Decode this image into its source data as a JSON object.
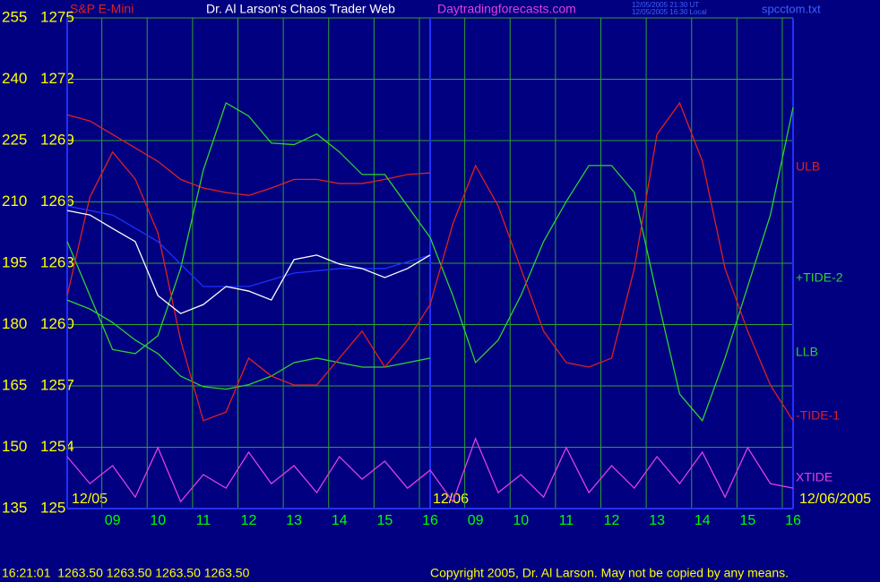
{
  "chart_data": {
    "type": "line",
    "header": {
      "symbol": "S&P E-Mini",
      "title": "Dr. Al Larson's Chaos Trader Web",
      "site": "Daytradingforecasts.com",
      "time_ut": "12/05/2005 21:30 UT",
      "time_local": "12/05/2005 16:30 Local",
      "file": "spcctom.txt"
    },
    "footer": {
      "quote": "16:21:01  1263.50 1263.50 1263.50 1263.50",
      "copyright": "Copyright 2005, Dr. Al Larson. May not be copied by any means."
    },
    "annotations": [
      "12/05",
      "12/06",
      "12/06/2005"
    ],
    "xlim": [
      0,
      16
    ],
    "xticks": [
      {
        "value": 1,
        "label": "09"
      },
      {
        "value": 2,
        "label": "10"
      },
      {
        "value": 3,
        "label": "11"
      },
      {
        "value": 4,
        "label": "12"
      },
      {
        "value": 5,
        "label": "13"
      },
      {
        "value": 6,
        "label": "14"
      },
      {
        "value": 7,
        "label": "15"
      },
      {
        "value": 8,
        "label": "16"
      },
      {
        "value": 9,
        "label": "09"
      },
      {
        "value": 10,
        "label": "10"
      },
      {
        "value": 11,
        "label": "11"
      },
      {
        "value": 12,
        "label": "12"
      },
      {
        "value": 13,
        "label": "13"
      },
      {
        "value": 14,
        "label": "14"
      },
      {
        "value": 15,
        "label": "15"
      },
      {
        "value": 16,
        "label": "16"
      }
    ],
    "ylim": [
      135,
      255
    ],
    "yticks": [
      135,
      150,
      165,
      180,
      195,
      210,
      225,
      240,
      255
    ],
    "y2lim": [
      1251,
      1275
    ],
    "y2ticks": [
      {
        "value": 1251,
        "label": "125"
      },
      1254,
      1257,
      1260,
      1263,
      1266,
      1269,
      1272,
      1275
    ],
    "grid": true,
    "series": [
      {
        "name": "ULB",
        "color": "#e02020",
        "x": [
          0,
          0.5,
          1,
          1.5,
          2,
          2.5,
          3,
          3.5,
          4,
          4.5,
          5,
          5.5,
          6,
          6.5,
          7,
          7.5,
          8
        ],
        "values": [
          231.3,
          229.8,
          226.5,
          223.2,
          219.9,
          215.5,
          213.4,
          212.3,
          211.6,
          213.4,
          215.5,
          215.5,
          214.5,
          214.5,
          215.5,
          216.7,
          217.1
        ]
      },
      {
        "name": "+TIDE-2",
        "color": "#30d030",
        "x": [
          0,
          0.5,
          1,
          1.5,
          2,
          2.5,
          3,
          3.5,
          4,
          4.5,
          5,
          5.5,
          6,
          6.5,
          7,
          7.5,
          8,
          8.5,
          9,
          9.5,
          10,
          10.5,
          11,
          11.5,
          12,
          12.5,
          13,
          13.5,
          14,
          14.5,
          15,
          15.5,
          16
        ],
        "values": [
          200.3,
          187.1,
          173.9,
          172.9,
          177.3,
          193.7,
          217.8,
          234.2,
          231,
          224.4,
          224,
          226.6,
          222.2,
          216.7,
          216.7,
          209,
          201.3,
          187.1,
          170.7,
          176.2,
          187.1,
          200.3,
          210.1,
          218.9,
          218.9,
          212.3,
          187.1,
          163,
          156.5,
          171.8,
          189.3,
          206.8,
          233.1
        ]
      },
      {
        "name": "LLB",
        "color": "#30d030",
        "x": [
          0,
          0.5,
          1,
          1.5,
          2,
          2.5,
          3,
          3.5,
          4,
          4.5,
          5,
          5.5,
          6,
          6.5,
          7,
          7.5,
          8
        ],
        "values": [
          186,
          183.8,
          180.5,
          176.2,
          172.9,
          167.4,
          164.8,
          164.2,
          165.3,
          167.4,
          170.7,
          171.8,
          170.7,
          169.6,
          169.6,
          170.7,
          171.8
        ]
      },
      {
        "name": "-TIDE-1",
        "color": "#e02020",
        "x": [
          0,
          0.5,
          1,
          1.5,
          2,
          2.5,
          3,
          3.5,
          4,
          4.5,
          5,
          5.5,
          6,
          6.5,
          7,
          7.5,
          8,
          8.5,
          9,
          9.5,
          10,
          10.5,
          11,
          11.5,
          12,
          12.5,
          13,
          13.5,
          14,
          14.5,
          15,
          15.5,
          16
        ],
        "values": [
          187.1,
          211.2,
          222.2,
          215.6,
          202.4,
          176.2,
          156.5,
          158.6,
          171.8,
          167.4,
          165.2,
          165.2,
          171.8,
          178.4,
          169.6,
          176.2,
          184.9,
          204.6,
          218.9,
          209,
          193.7,
          178.4,
          170.7,
          169.6,
          171.8,
          193.7,
          226.5,
          234.2,
          220,
          193.7,
          178.4,
          165.2,
          156.5
        ]
      },
      {
        "name": "XTIDE",
        "color": "#e040e0",
        "x": [
          0,
          0.5,
          1,
          1.5,
          2,
          2.5,
          3,
          3.5,
          4,
          4.5,
          5,
          5.5,
          6,
          6.5,
          7,
          7.5,
          8,
          8.5,
          9,
          9.5,
          10,
          10.5,
          11,
          11.5,
          12,
          12.5,
          13,
          13.5,
          14,
          14.5,
          15,
          15.5,
          16
        ],
        "values": [
          147.7,
          141.1,
          145.5,
          137.8,
          149.9,
          136.7,
          143.3,
          140,
          148.8,
          141.1,
          145.5,
          138.9,
          147.7,
          142.2,
          146.6,
          140,
          144.4,
          136.7,
          152.1,
          138.9,
          143.3,
          137.8,
          149.9,
          138.9,
          145.5,
          140,
          147.7,
          141.1,
          148.8,
          137.8,
          149.9,
          141.1,
          140
        ]
      },
      {
        "color": "#2030ff",
        "x": [
          0,
          1,
          2,
          3,
          4,
          5,
          6,
          7,
          8
        ],
        "values": [
          209,
          206.8,
          200.3,
          189.3,
          189.3,
          192.6,
          193.7,
          193.7,
          197
        ]
      },
      {
        "color": "#ffffff",
        "x": [
          0,
          0.5,
          1,
          1.5,
          2,
          2.5,
          3,
          3.5,
          4,
          4.5,
          5,
          5.5,
          6,
          6.5,
          7,
          7.5,
          8
        ],
        "values": [
          207.9,
          206.8,
          203.5,
          200.3,
          187.1,
          182.7,
          184.9,
          189.3,
          188.2,
          186,
          195.9,
          197,
          194.8,
          193.7,
          191.5,
          193.7,
          197
        ]
      }
    ]
  }
}
